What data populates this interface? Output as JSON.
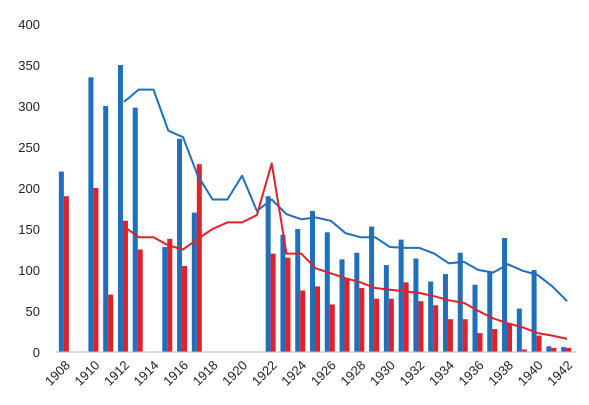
{
  "chart_data": {
    "type": "bar",
    "title": "",
    "xlabel": "",
    "ylabel": "",
    "ylim": [
      0,
      400
    ],
    "yticks": [
      0,
      50,
      100,
      150,
      200,
      250,
      300,
      350,
      400
    ],
    "xtick_labels": [
      "1908",
      "1910",
      "1912",
      "1914",
      "1916",
      "1918",
      "1920",
      "1922",
      "1924",
      "1926",
      "1928",
      "1930",
      "1932",
      "1934",
      "1936",
      "1938",
      "1940",
      "1942"
    ],
    "x": [
      1908,
      1909,
      1910,
      1911,
      1912,
      1913,
      1914,
      1915,
      1916,
      1917,
      1918,
      1919,
      1920,
      1921,
      1922,
      1923,
      1924,
      1925,
      1926,
      1927,
      1928,
      1929,
      1930,
      1931,
      1932,
      1933,
      1934,
      1935,
      1936,
      1937,
      1938,
      1939,
      1940,
      1941,
      1942
    ],
    "colors": {
      "blue": "#1f6fba",
      "red": "#e3202a"
    },
    "series": [
      {
        "kind": "bar",
        "color": "blue",
        "values": [
          220,
          null,
          335,
          300,
          350,
          298,
          null,
          128,
          260,
          170,
          null,
          null,
          null,
          null,
          190,
          143,
          150,
          172,
          146,
          113,
          121,
          153,
          106,
          137,
          114,
          86,
          95,
          121,
          82,
          98,
          139,
          53,
          100,
          7,
          6
        ]
      },
      {
        "kind": "bar",
        "color": "red",
        "values": [
          190,
          null,
          200,
          70,
          160,
          125,
          null,
          138,
          105,
          229,
          null,
          null,
          null,
          null,
          120,
          115,
          75,
          80,
          58,
          90,
          78,
          65,
          65,
          85,
          62,
          57,
          40,
          40,
          23,
          28,
          35,
          3,
          20,
          5,
          5
        ]
      },
      {
        "kind": "line",
        "color": "blue",
        "values": [
          null,
          null,
          null,
          null,
          305,
          320,
          320,
          270,
          262,
          215,
          186,
          186,
          215,
          172,
          186,
          168,
          162,
          164,
          160,
          145,
          140,
          140,
          128,
          127,
          127,
          120,
          108,
          110,
          100,
          97,
          107,
          99,
          94,
          80,
          62
        ]
      },
      {
        "kind": "line",
        "color": "red",
        "values": [
          null,
          null,
          null,
          null,
          153,
          140,
          140,
          130,
          125,
          138,
          150,
          158,
          158,
          167,
          230,
          120,
          120,
          102,
          96,
          90,
          85,
          78,
          76,
          74,
          72,
          68,
          63,
          60,
          50,
          41,
          35,
          30,
          23,
          20,
          16
        ]
      }
    ]
  }
}
